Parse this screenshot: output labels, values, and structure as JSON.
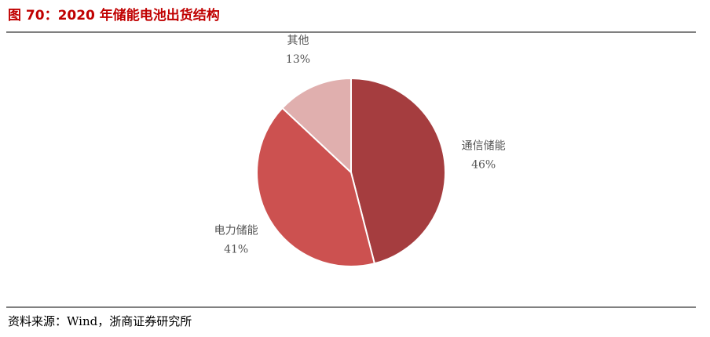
{
  "title": "图 70：2020 年储能电池出货结构",
  "chart_data": {
    "type": "pie",
    "categories": [
      "通信储能",
      "电力储能",
      "其他"
    ],
    "values": [
      46,
      41,
      13
    ],
    "value_labels": [
      "46%",
      "41%",
      "13%"
    ],
    "colors": [
      "#a53d3f",
      "#cc5150",
      "#e0afae"
    ]
  },
  "source": "资料来源：Wind，浙商证券研究所"
}
